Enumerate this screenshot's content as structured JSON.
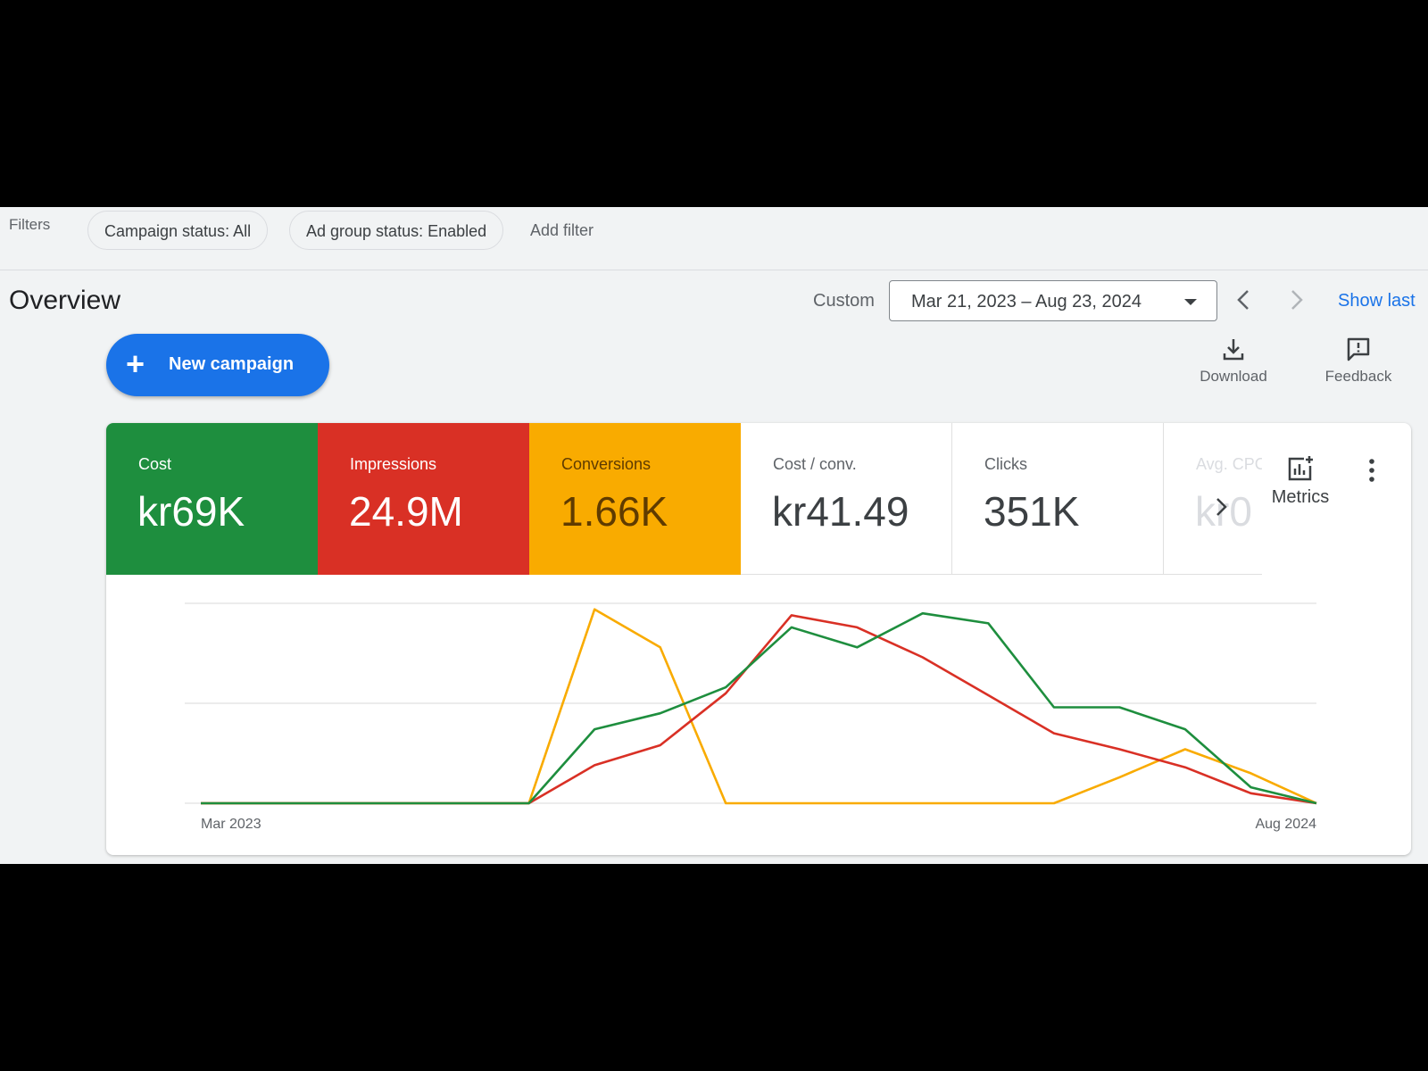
{
  "filters": {
    "label": "Filters",
    "chips": [
      "Campaign status: All",
      "Ad group status: Enabled"
    ],
    "add_filter": "Add filter"
  },
  "overview": {
    "title": "Overview",
    "custom_label": "Custom",
    "date_range": "Mar 21, 2023 – Aug 23, 2024",
    "show_last": "Show last"
  },
  "toolbar": {
    "new_campaign": "New campaign",
    "download": "Download",
    "feedback": "Feedback"
  },
  "metrics": {
    "cost": {
      "label": "Cost",
      "value": "kr69K"
    },
    "impressions": {
      "label": "Impressions",
      "value": "24.9M"
    },
    "conversions": {
      "label": "Conversions",
      "value": "1.66K"
    },
    "cost_per_conv": {
      "label": "Cost / conv.",
      "value": "kr41.49"
    },
    "clicks": {
      "label": "Clicks",
      "value": "351K"
    },
    "avg_cpc": {
      "label": "Avg. CPC",
      "value": "kr0"
    },
    "metrics_button": "Metrics"
  },
  "colors": {
    "cost": "#1e8e3e",
    "impressions": "#d93025",
    "conversions": "#f9ab00",
    "accent": "#1a73e8"
  },
  "chart_data": {
    "type": "line",
    "x": [
      "Mar 2023",
      "Apr 2023",
      "May 2023",
      "Jun 2023",
      "Jul 2023",
      "Aug 2023",
      "Sep 2023",
      "Oct 2023",
      "Nov 2023",
      "Dec 2023",
      "Jan 2024",
      "Feb 2024",
      "Mar 2024",
      "Apr 2024",
      "May 2024",
      "Jun 2024",
      "Jul 2024",
      "Aug 2024"
    ],
    "x_tick_labels": [
      "Mar 2023",
      "Aug 2024"
    ],
    "ylim": [
      0,
      100
    ],
    "gridlines": 3,
    "series": [
      {
        "name": "Cost",
        "color": "#1e8e3e",
        "values": [
          0,
          0,
          0,
          0,
          0,
          0,
          37,
          45,
          58,
          88,
          78,
          95,
          90,
          48,
          48,
          37,
          8,
          0
        ]
      },
      {
        "name": "Impressions",
        "color": "#d93025",
        "values": [
          0,
          0,
          0,
          0,
          0,
          0,
          19,
          29,
          55,
          94,
          88,
          73,
          54,
          35,
          27,
          18,
          5,
          0
        ]
      },
      {
        "name": "Conversions",
        "color": "#f9ab00",
        "values": [
          0,
          0,
          0,
          0,
          0,
          0,
          97,
          78,
          0,
          0,
          0,
          0,
          0,
          0,
          13,
          27,
          15,
          0
        ]
      }
    ]
  }
}
